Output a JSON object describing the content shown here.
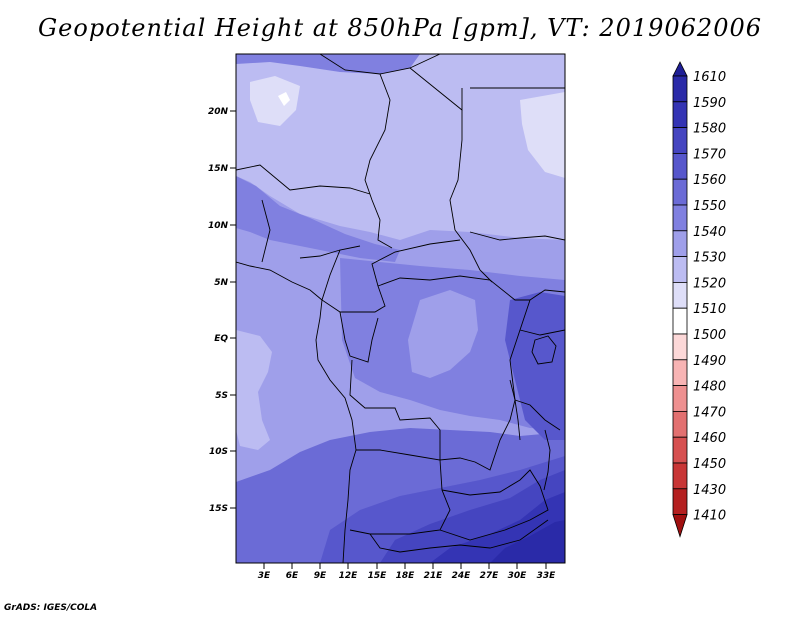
{
  "title": "Geopotential Height at 850hPa [gpm], VT: 2019062006",
  "credit": "GrADS: IGES/COLA",
  "map": {
    "lat_ticks": [
      "20N",
      "15N",
      "10N",
      "5N",
      "EQ",
      "5S",
      "10S",
      "15S"
    ],
    "lon_ticks": [
      "3E",
      "6E",
      "9E",
      "12E",
      "15E",
      "18E",
      "21E",
      "24E",
      "27E",
      "30E",
      "33E"
    ]
  },
  "colorbar": {
    "levels": [
      "1610",
      "1590",
      "1580",
      "1570",
      "1560",
      "1550",
      "1540",
      "1530",
      "1520",
      "1510",
      "1500",
      "1490",
      "1480",
      "1470",
      "1460",
      "1450",
      "1430",
      "1410"
    ],
    "colors": [
      "#1f1f96",
      "#2a2aa8",
      "#3434b4",
      "#4545c0",
      "#5757cc",
      "#6b6bd6",
      "#8080e0",
      "#9f9fea",
      "#bcbcf2",
      "#dedef8",
      "#ffffff",
      "#fcd8d8",
      "#f8b4b4",
      "#ee9090",
      "#e27070",
      "#d65050",
      "#c83636",
      "#b42020",
      "#a01010"
    ]
  }
}
